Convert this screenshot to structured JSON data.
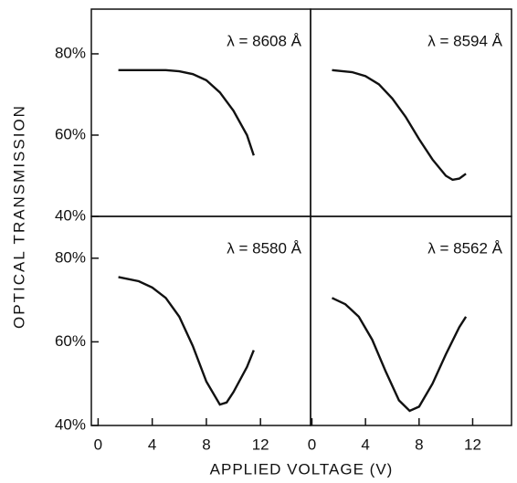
{
  "ylabel": "OPTICAL TRANSMISSION",
  "xlabel": "APPLIED  VOLTAGE (V)",
  "chart_data": [
    {
      "type": "line",
      "title": "λ = 8608 Å",
      "color": "#111111",
      "x": [
        1.5,
        3,
        5,
        6,
        7,
        8,
        9,
        10,
        11,
        11.5
      ],
      "values": [
        76,
        76,
        76,
        75.7,
        75,
        73.5,
        70.5,
        66,
        60,
        55
      ],
      "xlim": [
        -0.5,
        15.7
      ],
      "ylim": [
        40,
        91
      ],
      "yticks": [
        {
          "value": 40,
          "label": "40%"
        },
        {
          "value": 60,
          "label": "60%"
        },
        {
          "value": 80,
          "label": "80%"
        }
      ]
    },
    {
      "type": "line",
      "title": "λ = 8594 Å",
      "color": "#111111",
      "x": [
        1.5,
        3,
        4,
        5,
        6,
        7,
        8,
        9,
        10,
        10.5,
        11,
        11.5
      ],
      "values": [
        76,
        75.5,
        74.5,
        72.5,
        69,
        64.5,
        59,
        54,
        50,
        49,
        49.3,
        50.5
      ],
      "xlim": [
        -0.1,
        14.9
      ],
      "ylim": [
        40,
        91
      ]
    },
    {
      "type": "line",
      "title": "λ = 8580 Å",
      "color": "#111111",
      "x": [
        1.5,
        3,
        4,
        5,
        6,
        7,
        8,
        9,
        9.5,
        10,
        11,
        11.5
      ],
      "values": [
        75.5,
        74.5,
        73,
        70.5,
        66,
        59,
        50.5,
        45,
        45.5,
        48,
        54,
        58
      ],
      "xlim": [
        -0.5,
        15.7
      ],
      "ylim": [
        40,
        90
      ],
      "xticks": [
        0,
        4,
        8,
        12
      ],
      "yticks": [
        {
          "value": 40,
          "label": "40%"
        },
        {
          "value": 60,
          "label": "60%"
        },
        {
          "value": 80,
          "label": "80%"
        }
      ]
    },
    {
      "type": "line",
      "title": "λ = 8562 Å",
      "color": "#111111",
      "x": [
        1.5,
        2.5,
        3.5,
        4.5,
        5.5,
        6.5,
        7.3,
        8,
        9,
        10,
        11,
        11.5
      ],
      "values": [
        70.5,
        69,
        66,
        60.5,
        53,
        46,
        43.5,
        44.5,
        50,
        57,
        63.5,
        66
      ],
      "xlim": [
        -0.1,
        14.9
      ],
      "ylim": [
        40,
        90
      ],
      "xticks": [
        0,
        4,
        8,
        12
      ]
    }
  ]
}
